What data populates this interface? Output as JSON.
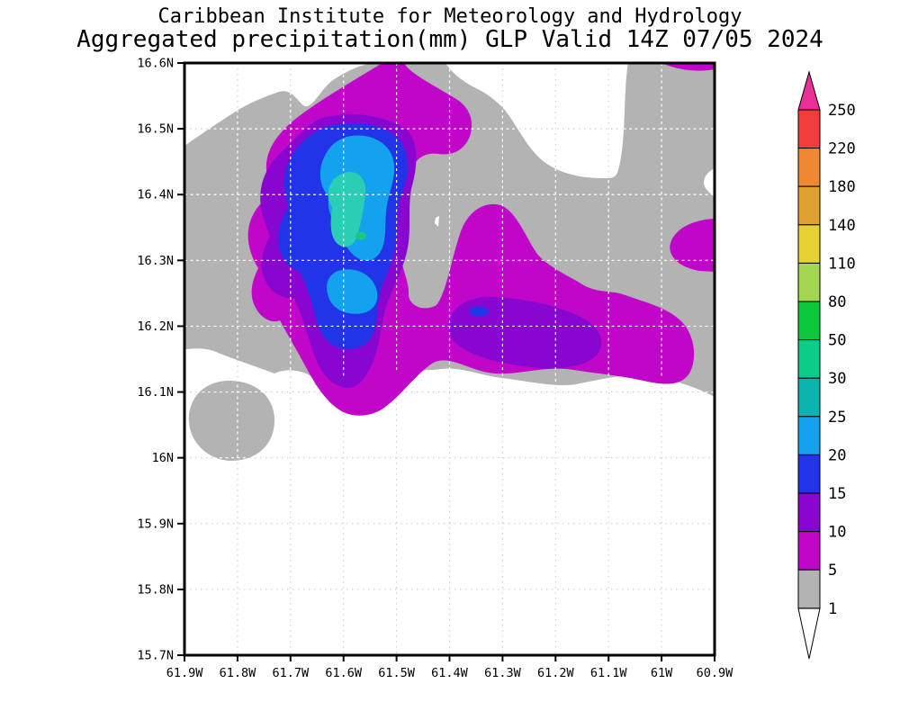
{
  "title": {
    "line1": "Caribbean Institute for Meteorology and Hydrology",
    "line2": "Aggregated precipitation(mm) GLP Valid 14Z 07/05 2024"
  },
  "map": {
    "x_axis": {
      "ticks": [
        "61.9W",
        "61.8W",
        "61.7W",
        "61.6W",
        "61.5W",
        "61.4W",
        "61.3W",
        "61.2W",
        "61.1W",
        "61W",
        "60.9W"
      ]
    },
    "y_axis": {
      "ticks": [
        "16.6N",
        "16.5N",
        "16.4N",
        "16.3N",
        "16.2N",
        "16.1N",
        "16N",
        "15.9N",
        "15.8N",
        "15.7N"
      ]
    },
    "grid": {
      "under_color": "#c9c9c9",
      "over_color": "#ffffff"
    },
    "border_color": "#000000",
    "fill_by_level": {
      "1": "#b3b3b3",
      "5": "#bf06c9",
      "10": "#8806cf",
      "15": "#2134e8",
      "20": "#14a2ee",
      "25": "#2bcdb4",
      "30": "#18c87e"
    }
  },
  "colorbar": {
    "tick_labels": [
      "250",
      "220",
      "180",
      "140",
      "110",
      "80",
      "50",
      "30",
      "25",
      "20",
      "15",
      "10",
      "5",
      "1"
    ],
    "cell_colors": [
      "#f23c3c",
      "#ef8832",
      "#dfa22e",
      "#e6d233",
      "#a2d653",
      "#0cc83c",
      "#0ccc88",
      "#0cb4ae",
      "#14a2ee",
      "#2134e8",
      "#8806cf",
      "#bf06c9",
      "#b3b3b3"
    ],
    "above_max_color": "#ea2f96",
    "below_min_color": "#ffffff",
    "outline_color": "#000000"
  },
  "chart_data": {
    "type": "heatmap",
    "subtype": "filled-contour precipitation map",
    "organization": "Caribbean Institute for Meteorology and Hydrology",
    "title": "Aggregated precipitation(mm) GLP Valid 14Z 07/05 2024",
    "variable": "Aggregated precipitation (mm)",
    "model": "GLP",
    "valid_time": "14Z 07/05 2024",
    "x_range": [
      "61.9W",
      "60.9W"
    ],
    "y_range": [
      "15.7N",
      "16.6N"
    ],
    "grid_interval_deg": 0.1,
    "contour_levels_mm": [
      1,
      5,
      10,
      15,
      20,
      25,
      30,
      50,
      80,
      110,
      140,
      180,
      220,
      250
    ],
    "legend_position": "right vertical colorbar with over/under arrows",
    "features": [
      {
        "name": "main rain core",
        "location": "61.55W-61.65W, 16.28N-16.50N",
        "peak_mm": "30-50",
        "note": "elongated N-S core, cyan/teal with small 30-50 green maximum near 61.6W 16.35N"
      },
      {
        "name": "secondary core",
        "location": "61.60W, 16.23N-16.28N",
        "peak_mm": "20-25"
      },
      {
        "name": "small embedded maximum",
        "location": "61.35W, 16.22N",
        "peak_mm": "15-20"
      },
      {
        "name": "moderate arc band",
        "location": "arc from 61.7W 16.5N curving SE to 61.0W 16.2N",
        "peak_mm": "10-15"
      },
      {
        "name": "light precipitation envelope (1-5 mm)",
        "location": "broad gray region covering most of area north of ~16.15N"
      },
      {
        "name": "isolated light patch",
        "location": "61.8W, 16.0N-16.1N",
        "peak_mm": "1-5"
      },
      {
        "name": "east-edge patch",
        "location": "60.9W, 16.25N-16.35N",
        "peak_mm": "5-10"
      }
    ]
  }
}
